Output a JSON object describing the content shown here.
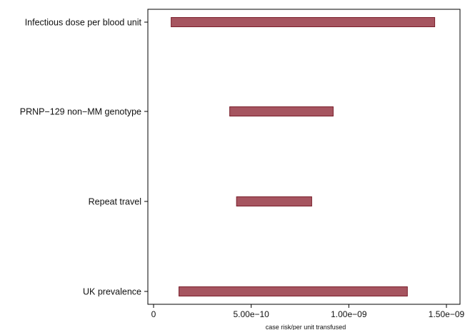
{
  "chart_data": {
    "type": "bar",
    "orientation": "horizontal",
    "chart_subtype": "range-bar (tornado)",
    "title": "",
    "xlabel": "case risk/per unit transfused",
    "ylabel": "",
    "xlim": [
      0,
      1.5e-09
    ],
    "grid": false,
    "legend": "none",
    "bar_color": "#a65560",
    "bar_edge_color": "#7a1f2b",
    "categories": [
      "Infectious dose per blood unit",
      "PRNP−129 non−MM genotype",
      "Repeat travel",
      "UK prevalence"
    ],
    "ranges": [
      {
        "low": 9e-11,
        "high": 1.44e-09
      },
      {
        "low": 3.9e-10,
        "high": 9.2e-10
      },
      {
        "low": 4.25e-10,
        "high": 8.1e-10
      },
      {
        "low": 1.3e-10,
        "high": 1.3e-09
      }
    ],
    "x_ticks": [
      {
        "value": 0,
        "label": "0"
      },
      {
        "value": 5e-10,
        "label": "5.00e−10"
      },
      {
        "value": 1e-09,
        "label": "1.00e−09"
      },
      {
        "value": 1.5e-09,
        "label": "1.50e−09"
      }
    ]
  }
}
